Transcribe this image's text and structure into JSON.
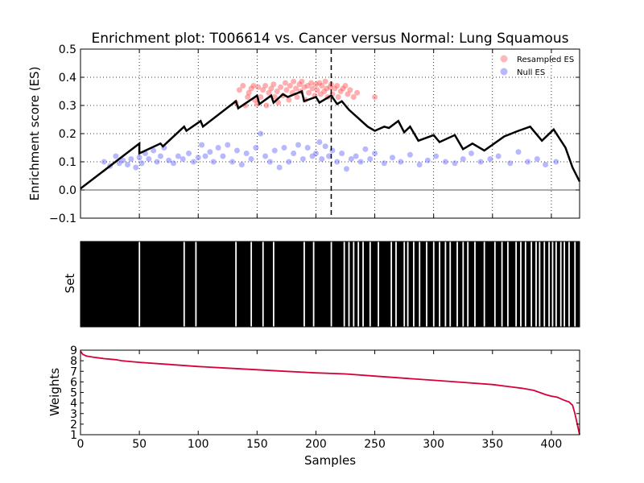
{
  "title": "Enrichment plot: T006614 vs. Cancer versus Normal: Lung Squamous",
  "colors": {
    "es_line": "#000000",
    "resampled": "#ff4d4d",
    "null": "#4d4dff",
    "weights": "#d6003a",
    "bars": "#000000",
    "background": "#ffffff"
  },
  "chart_data": [
    {
      "type": "line",
      "panel": "enrichment",
      "ylabel": "Enrichment score (ES)",
      "xlim": [
        0,
        424
      ],
      "ylim": [
        -0.1,
        0.5
      ],
      "y_ticks": [
        -0.1,
        0.0,
        0.1,
        0.2,
        0.3,
        0.4,
        0.5
      ],
      "x_ticks": [
        50,
        100,
        150,
        200,
        250,
        300,
        350,
        400
      ],
      "grid": true,
      "legend_position": "top-right",
      "legend": [
        "Resampled ES",
        "Null ES"
      ],
      "vline_x": 213,
      "series": [
        {
          "kind": "line",
          "points": [
            [
              0,
              0.005
            ],
            [
              50,
              0.165
            ],
            [
              50,
              0.13
            ],
            [
              68,
              0.165
            ],
            [
              70,
              0.155
            ],
            [
              88,
              0.225
            ],
            [
              90,
              0.21
            ],
            [
              102,
              0.245
            ],
            [
              104,
              0.225
            ],
            [
              132,
              0.315
            ],
            [
              134,
              0.29
            ],
            [
              150,
              0.335
            ],
            [
              152,
              0.305
            ],
            [
              162,
              0.335
            ],
            [
              164,
              0.31
            ],
            [
              172,
              0.34
            ],
            [
              176,
              0.33
            ],
            [
              188,
              0.35
            ],
            [
              190,
              0.315
            ],
            [
              200,
              0.33
            ],
            [
              203,
              0.31
            ],
            [
              213,
              0.335
            ],
            [
              218,
              0.305
            ],
            [
              222,
              0.315
            ],
            [
              228,
              0.285
            ],
            [
              244,
              0.225
            ],
            [
              250,
              0.21
            ],
            [
              258,
              0.225
            ],
            [
              262,
              0.22
            ],
            [
              270,
              0.245
            ],
            [
              275,
              0.205
            ],
            [
              280,
              0.225
            ],
            [
              287,
              0.175
            ],
            [
              300,
              0.195
            ],
            [
              305,
              0.17
            ],
            [
              318,
              0.195
            ],
            [
              325,
              0.145
            ],
            [
              333,
              0.165
            ],
            [
              343,
              0.14
            ],
            [
              360,
              0.19
            ],
            [
              372,
              0.21
            ],
            [
              382,
              0.225
            ],
            [
              392,
              0.175
            ],
            [
              402,
              0.215
            ],
            [
              412,
              0.15
            ],
            [
              418,
              0.08
            ],
            [
              424,
              0.03
            ]
          ]
        },
        {
          "name": "Resampled ES",
          "kind": "scatter",
          "points": [
            [
              132,
              0.31
            ],
            [
              135,
              0.355
            ],
            [
              138,
              0.37
            ],
            [
              140,
              0.3
            ],
            [
              142,
              0.33
            ],
            [
              143,
              0.345
            ],
            [
              145,
              0.36
            ],
            [
              147,
              0.37
            ],
            [
              148,
              0.32
            ],
            [
              150,
              0.305
            ],
            [
              151,
              0.365
            ],
            [
              153,
              0.33
            ],
            [
              155,
              0.355
            ],
            [
              157,
              0.37
            ],
            [
              158,
              0.3
            ],
            [
              160,
              0.345
            ],
            [
              162,
              0.36
            ],
            [
              164,
              0.375
            ],
            [
              165,
              0.33
            ],
            [
              167,
              0.35
            ],
            [
              168,
              0.31
            ],
            [
              170,
              0.365
            ],
            [
              172,
              0.335
            ],
            [
              174,
              0.38
            ],
            [
              175,
              0.355
            ],
            [
              177,
              0.32
            ],
            [
              178,
              0.37
            ],
            [
              180,
              0.345
            ],
            [
              181,
              0.385
            ],
            [
              183,
              0.36
            ],
            [
              184,
              0.33
            ],
            [
              186,
              0.375
            ],
            [
              187,
              0.35
            ],
            [
              188,
              0.385
            ],
            [
              190,
              0.365
            ],
            [
              191,
              0.32
            ],
            [
              193,
              0.37
            ],
            [
              194,
              0.345
            ],
            [
              196,
              0.38
            ],
            [
              197,
              0.36
            ],
            [
              199,
              0.335
            ],
            [
              200,
              0.375
            ],
            [
              201,
              0.355
            ],
            [
              203,
              0.38
            ],
            [
              204,
              0.34
            ],
            [
              205,
              0.37
            ],
            [
              207,
              0.35
            ],
            [
              208,
              0.385
            ],
            [
              209,
              0.36
            ],
            [
              210,
              0.33
            ],
            [
              212,
              0.365
            ],
            [
              213,
              0.375
            ],
            [
              214,
              0.34
            ],
            [
              216,
              0.36
            ],
            [
              218,
              0.37
            ],
            [
              219,
              0.33
            ],
            [
              221,
              0.35
            ],
            [
              223,
              0.36
            ],
            [
              225,
              0.37
            ],
            [
              227,
              0.34
            ],
            [
              229,
              0.355
            ],
            [
              232,
              0.33
            ],
            [
              235,
              0.345
            ],
            [
              250,
              0.33
            ]
          ]
        },
        {
          "name": "Null ES",
          "kind": "scatter",
          "points": [
            [
              20,
              0.1
            ],
            [
              25,
              0.085
            ],
            [
              30,
              0.12
            ],
            [
              33,
              0.095
            ],
            [
              36,
              0.105
            ],
            [
              40,
              0.09
            ],
            [
              43,
              0.11
            ],
            [
              47,
              0.08
            ],
            [
              50,
              0.115
            ],
            [
              52,
              0.095
            ],
            [
              55,
              0.13
            ],
            [
              58,
              0.11
            ],
            [
              62,
              0.14
            ],
            [
              65,
              0.1
            ],
            [
              68,
              0.12
            ],
            [
              71,
              0.15
            ],
            [
              75,
              0.105
            ],
            [
              79,
              0.095
            ],
            [
              83,
              0.12
            ],
            [
              87,
              0.11
            ],
            [
              92,
              0.13
            ],
            [
              96,
              0.1
            ],
            [
              100,
              0.115
            ],
            [
              103,
              0.16
            ],
            [
              106,
              0.12
            ],
            [
              110,
              0.135
            ],
            [
              113,
              0.1
            ],
            [
              117,
              0.15
            ],
            [
              121,
              0.12
            ],
            [
              125,
              0.16
            ],
            [
              129,
              0.1
            ],
            [
              133,
              0.14
            ],
            [
              137,
              0.09
            ],
            [
              141,
              0.13
            ],
            [
              145,
              0.11
            ],
            [
              149,
              0.15
            ],
            [
              153,
              0.2
            ],
            [
              157,
              0.12
            ],
            [
              161,
              0.1
            ],
            [
              165,
              0.14
            ],
            [
              169,
              0.08
            ],
            [
              173,
              0.15
            ],
            [
              177,
              0.1
            ],
            [
              181,
              0.13
            ],
            [
              185,
              0.16
            ],
            [
              189,
              0.11
            ],
            [
              193,
              0.15
            ],
            [
              197,
              0.12
            ],
            [
              200,
              0.13
            ],
            [
              203,
              0.17
            ],
            [
              205,
              0.11
            ],
            [
              208,
              0.155
            ],
            [
              211,
              0.12
            ],
            [
              214,
              0.14
            ],
            [
              218,
              0.1
            ],
            [
              222,
              0.13
            ],
            [
              226,
              0.075
            ],
            [
              230,
              0.11
            ],
            [
              234,
              0.12
            ],
            [
              238,
              0.1
            ],
            [
              242,
              0.145
            ],
            [
              246,
              0.11
            ],
            [
              250,
              0.13
            ],
            [
              258,
              0.095
            ],
            [
              265,
              0.115
            ],
            [
              272,
              0.1
            ],
            [
              280,
              0.125
            ],
            [
              288,
              0.09
            ],
            [
              295,
              0.105
            ],
            [
              302,
              0.12
            ],
            [
              310,
              0.1
            ],
            [
              318,
              0.095
            ],
            [
              325,
              0.11
            ],
            [
              332,
              0.13
            ],
            [
              340,
              0.1
            ],
            [
              348,
              0.11
            ],
            [
              355,
              0.12
            ],
            [
              365,
              0.095
            ],
            [
              372,
              0.135
            ],
            [
              380,
              0.1
            ],
            [
              388,
              0.11
            ],
            [
              395,
              0.09
            ],
            [
              404,
              0.1
            ]
          ]
        }
      ]
    },
    {
      "type": "bar",
      "panel": "set",
      "ylabel": "Set",
      "xlim": [
        0,
        424
      ],
      "gaps": [
        50,
        88,
        98,
        132,
        145,
        155,
        164,
        190,
        198,
        213,
        224,
        228,
        232,
        236,
        240,
        246,
        253,
        264,
        268,
        275,
        278,
        283,
        288,
        294,
        300,
        305,
        310,
        314,
        320,
        325,
        329,
        335,
        343,
        352,
        358,
        363,
        370,
        374,
        378,
        383,
        387,
        390,
        394,
        398,
        401,
        404,
        408,
        411,
        415,
        420
      ]
    },
    {
      "type": "line",
      "panel": "weights",
      "ylabel": "Weights",
      "xlabel": "Samples",
      "xlim": [
        0,
        424
      ],
      "ylim": [
        1,
        9
      ],
      "y_ticks": [
        1,
        2,
        3,
        4,
        5,
        6,
        7,
        8,
        9
      ],
      "x_ticks": [
        0,
        50,
        100,
        150,
        200,
        250,
        300,
        350,
        400
      ],
      "series": [
        {
          "kind": "line",
          "points": [
            [
              0,
              8.9
            ],
            [
              2,
              8.6
            ],
            [
              5,
              8.45
            ],
            [
              10,
              8.35
            ],
            [
              20,
              8.2
            ],
            [
              30,
              8.1
            ],
            [
              35,
              8.0
            ],
            [
              50,
              7.85
            ],
            [
              75,
              7.65
            ],
            [
              100,
              7.45
            ],
            [
              125,
              7.3
            ],
            [
              150,
              7.15
            ],
            [
              175,
              7.0
            ],
            [
              200,
              6.85
            ],
            [
              225,
              6.75
            ],
            [
              250,
              6.55
            ],
            [
              275,
              6.35
            ],
            [
              300,
              6.15
            ],
            [
              325,
              5.95
            ],
            [
              350,
              5.75
            ],
            [
              375,
              5.4
            ],
            [
              385,
              5.2
            ],
            [
              390,
              5.0
            ],
            [
              395,
              4.8
            ],
            [
              400,
              4.65
            ],
            [
              405,
              4.55
            ],
            [
              410,
              4.3
            ],
            [
              415,
              4.1
            ],
            [
              418,
              3.8
            ],
            [
              420,
              3.0
            ],
            [
              422,
              2.0
            ],
            [
              424,
              1.0
            ]
          ]
        }
      ]
    }
  ]
}
